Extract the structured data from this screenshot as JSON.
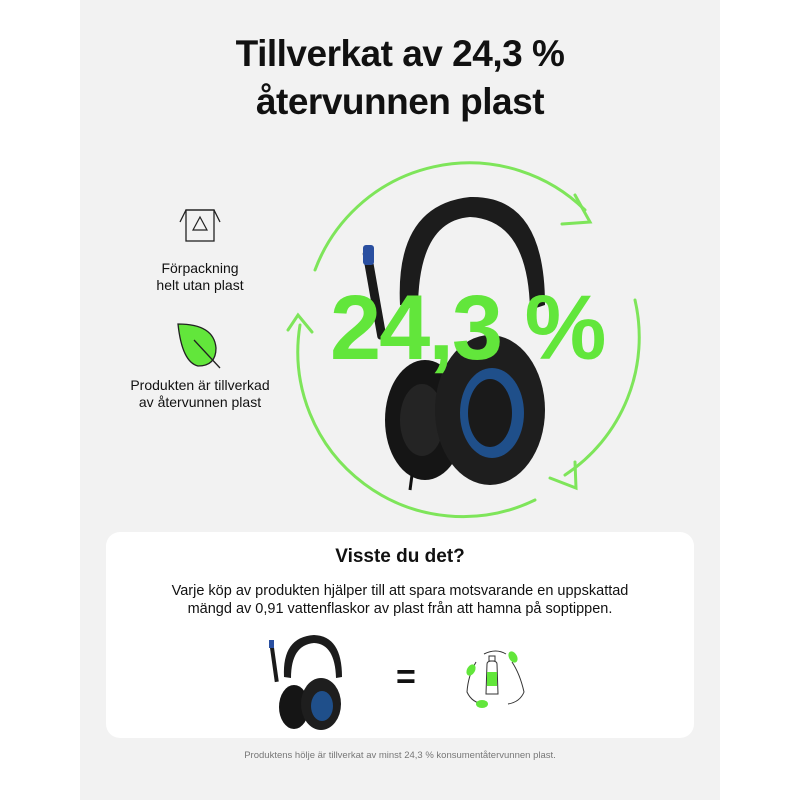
{
  "title": "Tillverkat av 24,3 % återvunnen plast",
  "title_lines": [
    "Tillverkat av 24,3 %",
    "återvunnen plast"
  ],
  "features": [
    {
      "icon": "recycle-box-icon",
      "lines": [
        "Förpackning",
        "helt utan plast"
      ]
    },
    {
      "icon": "leaf-icon",
      "lines": [
        "Produkten är tillverkad",
        "av återvunnen plast"
      ]
    }
  ],
  "highlight_value": "24,3 %",
  "info_card": {
    "heading": "Visste du det?",
    "text": "Varje köp av produkten hjälper till att spara motsvarande en uppskattad mängd av 0,91 vattenflaskor av plast från att hamna på soptippen.",
    "equals": "="
  },
  "footnote": "Produktens hölje är tillverkat av minst 24,3 % konsumentåtervunnen plast.",
  "colors": {
    "accent_green": "#62e63b",
    "arrow_green": "#7ee55a",
    "panel": "#f2f2f2",
    "ear_cushion_blue": "#1f4f8a"
  }
}
